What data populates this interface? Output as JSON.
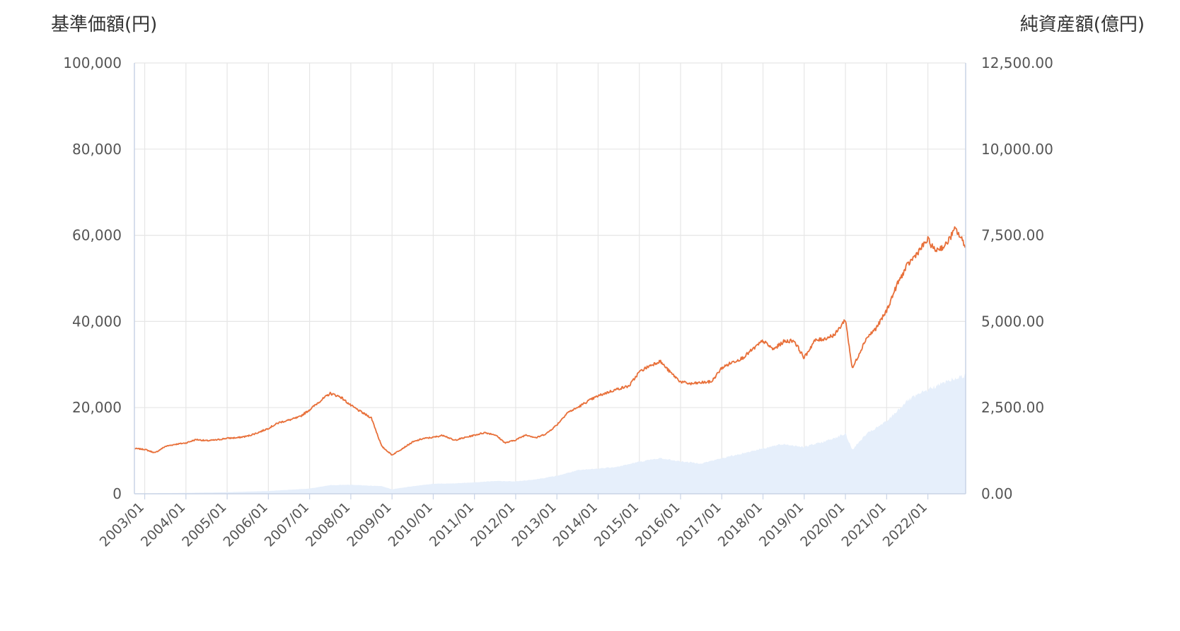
{
  "chart_data": {
    "type": "line",
    "left_axis_title": "基準価額(円)",
    "right_axis_title": "純資産額(億円)",
    "x_ticks": [
      "2003/01",
      "2004/01",
      "2005/01",
      "2006/01",
      "2007/01",
      "2008/01",
      "2009/01",
      "2010/01",
      "2011/01",
      "2012/01",
      "2013/01",
      "2014/01",
      "2015/01",
      "2016/01",
      "2017/01",
      "2018/01",
      "2019/01",
      "2020/01",
      "2021/01",
      "2022/01"
    ],
    "x_range": [
      "2002/10",
      "2022/12"
    ],
    "y_left": {
      "ticks": [
        "0",
        "20,000",
        "40,000",
        "60,000",
        "80,000",
        "100,000"
      ],
      "range": [
        0,
        100000
      ]
    },
    "y_right": {
      "ticks": [
        "0.00",
        "2,500.00",
        "5,000.00",
        "7,500.00",
        "10,000.00",
        "12,500.00"
      ],
      "range": [
        0,
        12500
      ]
    },
    "grid": true,
    "series": [
      {
        "axis": "left",
        "color": "#E8703A",
        "style": "line",
        "points": [
          [
            "2002/10",
            10500
          ],
          [
            "2003/01",
            10300
          ],
          [
            "2003/04",
            9500
          ],
          [
            "2003/07",
            11000
          ],
          [
            "2003/10",
            11500
          ],
          [
            "2004/01",
            11800
          ],
          [
            "2004/04",
            12600
          ],
          [
            "2004/07",
            12300
          ],
          [
            "2004/10",
            12500
          ],
          [
            "2005/01",
            12900
          ],
          [
            "2005/04",
            13000
          ],
          [
            "2005/07",
            13400
          ],
          [
            "2005/10",
            14200
          ],
          [
            "2006/01",
            15200
          ],
          [
            "2006/04",
            16500
          ],
          [
            "2006/07",
            17100
          ],
          [
            "2006/10",
            17800
          ],
          [
            "2007/01",
            19500
          ],
          [
            "2007/04",
            21500
          ],
          [
            "2007/07",
            23300
          ],
          [
            "2007/10",
            22500
          ],
          [
            "2008/01",
            20500
          ],
          [
            "2008/04",
            19000
          ],
          [
            "2008/07",
            17600
          ],
          [
            "2008/10",
            11000
          ],
          [
            "2009/01",
            9000
          ],
          [
            "2009/04",
            10500
          ],
          [
            "2009/07",
            12000
          ],
          [
            "2009/10",
            12800
          ],
          [
            "2010/01",
            13100
          ],
          [
            "2010/04",
            13600
          ],
          [
            "2010/07",
            12400
          ],
          [
            "2010/10",
            13000
          ],
          [
            "2011/01",
            13600
          ],
          [
            "2011/04",
            14200
          ],
          [
            "2011/07",
            13700
          ],
          [
            "2011/10",
            11800
          ],
          [
            "2012/01",
            12500
          ],
          [
            "2012/04",
            13700
          ],
          [
            "2012/07",
            13000
          ],
          [
            "2012/10",
            14000
          ],
          [
            "2013/01",
            16000
          ],
          [
            "2013/04",
            18800
          ],
          [
            "2013/07",
            20000
          ],
          [
            "2013/10",
            21500
          ],
          [
            "2014/01",
            22700
          ],
          [
            "2014/04",
            23600
          ],
          [
            "2014/07",
            24400
          ],
          [
            "2014/10",
            25000
          ],
          [
            "2015/01",
            28300
          ],
          [
            "2015/04",
            29700
          ],
          [
            "2015/07",
            30800
          ],
          [
            "2015/10",
            28200
          ],
          [
            "2016/01",
            26000
          ],
          [
            "2016/04",
            25500
          ],
          [
            "2016/07",
            25800
          ],
          [
            "2016/10",
            26000
          ],
          [
            "2017/01",
            29200
          ],
          [
            "2017/04",
            30500
          ],
          [
            "2017/07",
            31500
          ],
          [
            "2017/10",
            33500
          ],
          [
            "2018/01",
            35500
          ],
          [
            "2018/04",
            33500
          ],
          [
            "2018/07",
            35300
          ],
          [
            "2018/10",
            35600
          ],
          [
            "2019/01",
            31500
          ],
          [
            "2019/04",
            35500
          ],
          [
            "2019/07",
            36000
          ],
          [
            "2019/10",
            37000
          ],
          [
            "2020/01",
            40500
          ],
          [
            "2020/03",
            29000
          ],
          [
            "2020/07",
            36000
          ],
          [
            "2020/10",
            38500
          ],
          [
            "2021/01",
            42500
          ],
          [
            "2021/04",
            48500
          ],
          [
            "2021/07",
            53000
          ],
          [
            "2021/10",
            56000
          ],
          [
            "2022/01",
            59000
          ],
          [
            "2022/03",
            56500
          ],
          [
            "2022/06",
            57500
          ],
          [
            "2022/09",
            61500
          ],
          [
            "2022/12",
            57500
          ]
        ]
      },
      {
        "axis": "right",
        "color": "#E6EFFB",
        "style": "area",
        "points": [
          [
            "2002/10",
            0
          ],
          [
            "2003/01",
            8
          ],
          [
            "2004/01",
            25
          ],
          [
            "2005/01",
            45
          ],
          [
            "2006/01",
            80
          ],
          [
            "2007/01",
            150
          ],
          [
            "2007/07",
            250
          ],
          [
            "2008/01",
            260
          ],
          [
            "2008/10",
            220
          ],
          [
            "2009/01",
            130
          ],
          [
            "2009/07",
            220
          ],
          [
            "2010/01",
            290
          ],
          [
            "2010/07",
            300
          ],
          [
            "2011/01",
            330
          ],
          [
            "2011/07",
            370
          ],
          [
            "2012/01",
            360
          ],
          [
            "2012/07",
            420
          ],
          [
            "2013/01",
            520
          ],
          [
            "2013/07",
            680
          ],
          [
            "2014/01",
            730
          ],
          [
            "2014/07",
            790
          ],
          [
            "2015/01",
            930
          ],
          [
            "2015/07",
            1030
          ],
          [
            "2016/01",
            940
          ],
          [
            "2016/07",
            880
          ],
          [
            "2017/01",
            1030
          ],
          [
            "2017/07",
            1170
          ],
          [
            "2018/01",
            1320
          ],
          [
            "2018/07",
            1440
          ],
          [
            "2019/01",
            1360
          ],
          [
            "2019/07",
            1520
          ],
          [
            "2020/01",
            1740
          ],
          [
            "2020/03",
            1280
          ],
          [
            "2020/07",
            1720
          ],
          [
            "2021/01",
            2100
          ],
          [
            "2021/07",
            2700
          ],
          [
            "2022/01",
            3020
          ],
          [
            "2022/07",
            3280
          ],
          [
            "2022/12",
            3440
          ]
        ]
      }
    ]
  }
}
